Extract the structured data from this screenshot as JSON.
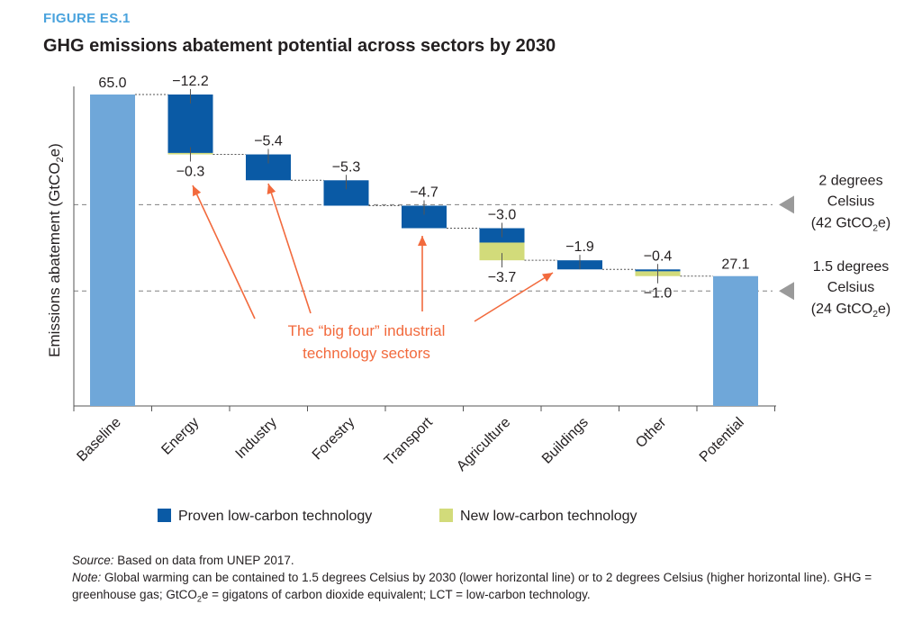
{
  "figure": {
    "label": "FIGURE ES.1",
    "title": "GHG emissions abatement potential across sectors by 2030"
  },
  "chart_data": {
    "type": "waterfall",
    "ylabel_main": "Emissions abatement (GtCO",
    "ylabel_sub": "2",
    "ylabel_tail": "e)",
    "categories": [
      "Baseline",
      "Energy",
      "Industry",
      "Forestry",
      "Transport",
      "Agriculture",
      "Buildings",
      "Other",
      "Potential"
    ],
    "totals": [
      {
        "category": "Baseline",
        "value": 65.0,
        "label": "65.0"
      },
      {
        "category": "Potential",
        "value": 27.1,
        "label": "27.1"
      }
    ],
    "steps": [
      {
        "category": "Energy",
        "proven": -12.2,
        "new": -0.3,
        "proven_label": "−12.2",
        "new_label": "−0.3"
      },
      {
        "category": "Industry",
        "proven": -5.4,
        "new": 0,
        "proven_label": "−5.4",
        "new_label": ""
      },
      {
        "category": "Forestry",
        "proven": -5.3,
        "new": 0,
        "proven_label": "−5.3",
        "new_label": ""
      },
      {
        "category": "Transport",
        "proven": -4.7,
        "new": 0,
        "proven_label": "−4.7",
        "new_label": ""
      },
      {
        "category": "Agriculture",
        "proven": -3.0,
        "new": -3.7,
        "proven_label": "−3.0",
        "new_label": "−3.7"
      },
      {
        "category": "Buildings",
        "proven": -1.9,
        "new": 0,
        "proven_label": "−1.9",
        "new_label": ""
      },
      {
        "category": "Other",
        "proven": -0.4,
        "new": -1.0,
        "proven_label": "−0.4",
        "new_label": "−1.0"
      }
    ],
    "reference_lines": [
      {
        "value": 42,
        "line1": "2 degrees",
        "line2": "Celsius",
        "line3_main": "(42 GtCO",
        "line3_sub": "2",
        "line3_tail": "e)"
      },
      {
        "value": 24,
        "line1": "1.5 degrees",
        "line2": "Celsius",
        "line3_main": "(24 GtCO",
        "line3_sub": "2",
        "line3_tail": "e)"
      }
    ],
    "annotation": {
      "line1": "The “big four” industrial",
      "line2": "technology sectors",
      "targets": [
        "Energy",
        "Industry",
        "Transport",
        "Buildings"
      ]
    },
    "legend": [
      {
        "label": "Proven low-carbon technology",
        "color": "#0a5aa5"
      },
      {
        "label": "New low-carbon technology",
        "color": "#d2db7a"
      }
    ],
    "colors": {
      "total": "#6fa7d9",
      "proven": "#0a5aa5",
      "new": "#d2db7a",
      "annotation": "#f26a3d",
      "reference": "#808080",
      "axis": "#555555"
    },
    "ylim": [
      0,
      65
    ]
  },
  "notes": {
    "source_label": "Source:",
    "source_text": " Based on data from UNEP 2017.",
    "note_label": "Note:",
    "note_text": " Global warming can be contained to 1.5 degrees Celsius by 2030 (lower horizontal line) or to 2 degrees Celsius (higher horizontal line). GHG = greenhouse gas; GtCO",
    "note_sub": "2",
    "note_text2": "e = gigatons of carbon dioxide equivalent; LCT = low-carbon technology."
  }
}
